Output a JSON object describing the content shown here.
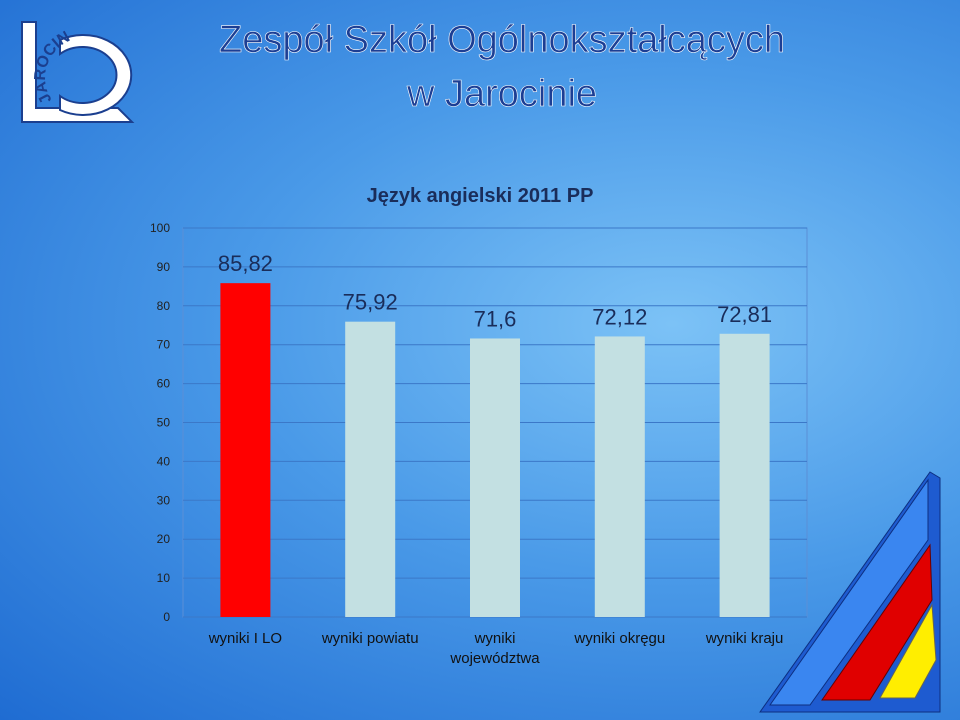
{
  "header": {
    "title_lines": [
      "Zespół Szkół Ogólnokształcących",
      "w Jarocinie"
    ],
    "logo_text": "JAROCIN"
  },
  "chart_data": {
    "type": "bar",
    "title": "Język angielski 2011 PP",
    "categories": [
      "wyniki I LO",
      "wyniki powiatu",
      "wyniki województwa",
      "wyniki okręgu",
      "wyniki kraju"
    ],
    "values": [
      85.82,
      75.92,
      71.6,
      72.12,
      72.81
    ],
    "value_labels": [
      "85,82",
      "75,92",
      "71,6",
      "72,12",
      "72,81"
    ],
    "colors": [
      "#ff0000",
      "#c3e0e2",
      "#c3e0e2",
      "#c3e0e2",
      "#c3e0e2"
    ],
    "ylim": [
      0,
      100
    ],
    "yticks": [
      0,
      10,
      20,
      30,
      40,
      50,
      60,
      70,
      80,
      90,
      100
    ],
    "grid": true
  }
}
